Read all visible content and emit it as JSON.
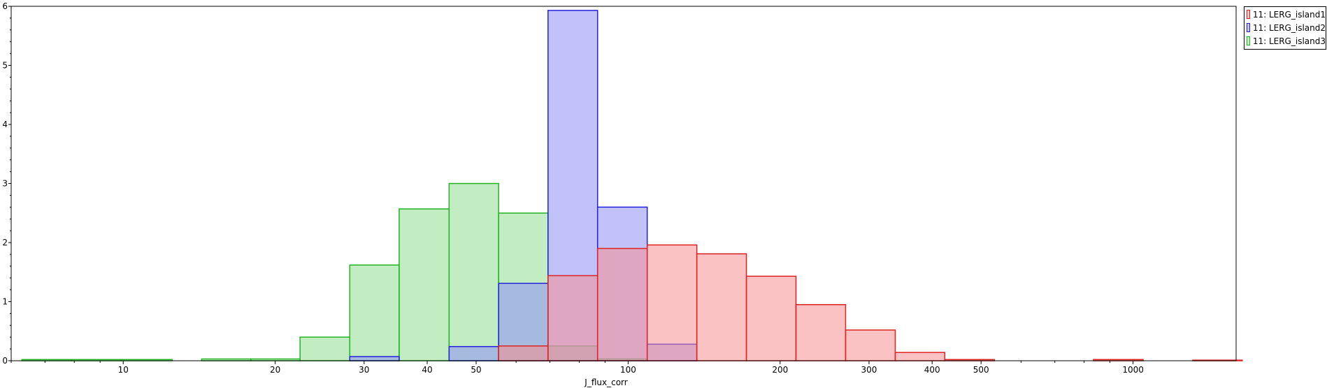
{
  "chart_data": {
    "type": "histogram",
    "xlabel": "J_flux_corr",
    "ylabel": "",
    "x_scale": "log",
    "xlim": [
      6,
      1600
    ],
    "ylim": [
      0,
      6
    ],
    "grid": false,
    "legend_position": "top-right",
    "x_ticks": [
      {
        "value": 10,
        "label": "10"
      },
      {
        "value": 20,
        "label": "20"
      },
      {
        "value": 30,
        "label": "30"
      },
      {
        "value": 40,
        "label": "40"
      },
      {
        "value": 50,
        "label": "50"
      },
      {
        "value": 100,
        "label": "100"
      },
      {
        "value": 200,
        "label": "200"
      },
      {
        "value": 300,
        "label": "300"
      },
      {
        "value": 400,
        "label": "400"
      },
      {
        "value": 500,
        "label": "500"
      },
      {
        "value": 1000,
        "label": "1000"
      }
    ],
    "y_ticks": [
      {
        "value": 0,
        "label": "0"
      },
      {
        "value": 1,
        "label": "1"
      },
      {
        "value": 2,
        "label": "2"
      },
      {
        "value": 3,
        "label": "3"
      },
      {
        "value": 4,
        "label": "4"
      },
      {
        "value": 5,
        "label": "5"
      },
      {
        "value": 6,
        "label": "6"
      }
    ],
    "series": [
      {
        "name": "11: LERG_island3",
        "fill": "#8fdc8f",
        "stroke": "#22b422",
        "bins": [
          {
            "x0": 6.3,
            "x1": 7.9,
            "y": 0.02
          },
          {
            "x0": 7.9,
            "x1": 9.9,
            "y": 0.02
          },
          {
            "x0": 9.9,
            "x1": 12.5,
            "y": 0.02
          },
          {
            "x0": 14.3,
            "x1": 17.9,
            "y": 0.03
          },
          {
            "x0": 17.9,
            "x1": 22.4,
            "y": 0.03
          },
          {
            "x0": 22.4,
            "x1": 28.1,
            "y": 0.4
          },
          {
            "x0": 28.1,
            "x1": 35.2,
            "y": 1.62
          },
          {
            "x0": 35.2,
            "x1": 44.2,
            "y": 2.57
          },
          {
            "x0": 44.2,
            "x1": 55.4,
            "y": 3.0
          },
          {
            "x0": 55.4,
            "x1": 69.4,
            "y": 2.5
          },
          {
            "x0": 69.4,
            "x1": 87.0,
            "y": 0.25
          },
          {
            "x0": 87.0,
            "x1": 109.1,
            "y": 0.03
          }
        ]
      },
      {
        "name": "11: LERG_island2",
        "fill": "#8f8ff5",
        "stroke": "#2222dd",
        "bins": [
          {
            "x0": 28.1,
            "x1": 35.2,
            "y": 0.07
          },
          {
            "x0": 44.2,
            "x1": 55.4,
            "y": 0.24
          },
          {
            "x0": 55.4,
            "x1": 69.4,
            "y": 1.31
          },
          {
            "x0": 69.4,
            "x1": 87.0,
            "y": 5.93
          },
          {
            "x0": 87.0,
            "x1": 109.1,
            "y": 2.6
          },
          {
            "x0": 109.1,
            "x1": 136.8,
            "y": 0.28
          }
        ]
      },
      {
        "name": "11: LERG_island1",
        "fill": "#f58f8f",
        "stroke": "#dd2222",
        "bins": [
          {
            "x0": 55.4,
            "x1": 69.4,
            "y": 0.25
          },
          {
            "x0": 69.4,
            "x1": 87.0,
            "y": 1.44
          },
          {
            "x0": 87.0,
            "x1": 109.1,
            "y": 1.9
          },
          {
            "x0": 109.1,
            "x1": 136.8,
            "y": 1.96
          },
          {
            "x0": 136.8,
            "x1": 171.5,
            "y": 1.81
          },
          {
            "x0": 171.5,
            "x1": 215.0,
            "y": 1.43
          },
          {
            "x0": 215.0,
            "x1": 269.6,
            "y": 0.95
          },
          {
            "x0": 269.6,
            "x1": 338.1,
            "y": 0.52
          },
          {
            "x0": 338.1,
            "x1": 423.8,
            "y": 0.14
          },
          {
            "x0": 423.8,
            "x1": 531.4,
            "y": 0.02
          },
          {
            "x0": 835.0,
            "x1": 1047.0,
            "y": 0.02
          },
          {
            "x0": 1313.0,
            "x1": 1646.0,
            "y": 0.01
          }
        ]
      }
    ]
  },
  "legend": {
    "items": [
      {
        "label": "11: LERG_island1",
        "fill": "#f9c5c5",
        "stroke": "#dd2222"
      },
      {
        "label": "11: LERG_island2",
        "fill": "#c5c5f9",
        "stroke": "#2222dd"
      },
      {
        "label": "11: LERG_island3",
        "fill": "#c5eec5",
        "stroke": "#22b422"
      }
    ]
  }
}
